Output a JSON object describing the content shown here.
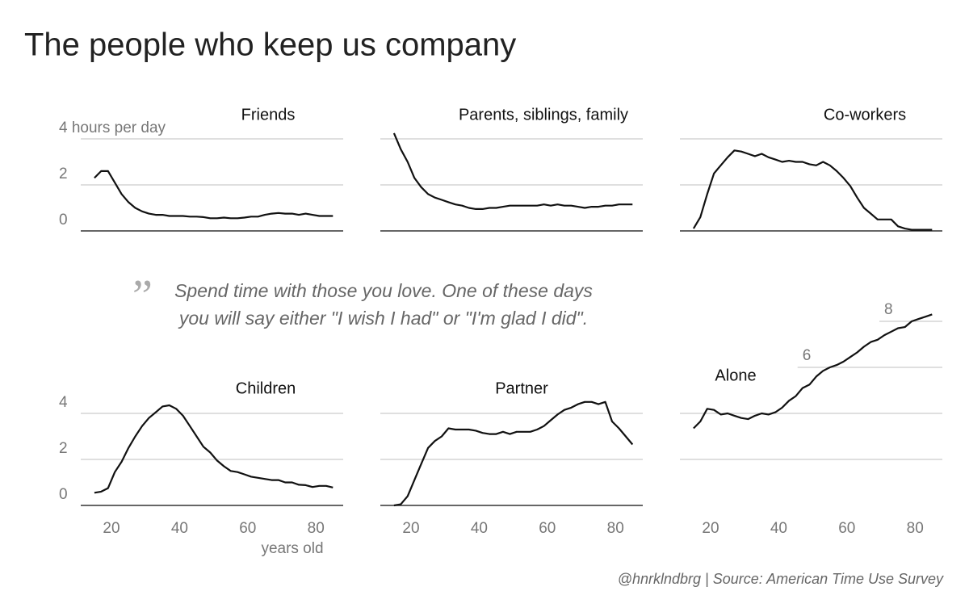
{
  "title": "The people who keep us company",
  "quote": [
    "Spend time with those you love. One of these days",
    "you will say either \"I wish I had\" or \"I'm glad I did\"."
  ],
  "source": "@hnrklndbrg | Source: American Time Use Survey",
  "chart_data": [
    {
      "type": "line",
      "title": "Friends",
      "x": [
        15,
        17,
        19,
        21,
        23,
        25,
        27,
        29,
        31,
        33,
        35,
        37,
        39,
        41,
        43,
        45,
        47,
        49,
        51,
        53,
        55,
        57,
        59,
        61,
        63,
        65,
        67,
        69,
        71,
        73,
        75,
        77,
        79,
        81,
        83,
        85
      ],
      "series": [
        {
          "color": "#111111",
          "values": [
            2.3,
            2.6,
            2.6,
            2.1,
            1.6,
            1.25,
            1.0,
            0.85,
            0.75,
            0.7,
            0.7,
            0.65,
            0.65,
            0.65,
            0.62,
            0.62,
            0.6,
            0.55,
            0.55,
            0.58,
            0.55,
            0.55,
            0.58,
            0.62,
            0.62,
            0.7,
            0.75,
            0.78,
            0.75,
            0.75,
            0.7,
            0.75,
            0.7,
            0.65,
            0.65,
            0.65
          ]
        }
      ],
      "xlim": [
        11,
        88
      ],
      "ylim": [
        0,
        4
      ],
      "yticks": [
        0,
        2,
        {
          "value": 4,
          "label": "4 hours per day"
        }
      ],
      "gridlines": []
    },
    {
      "type": "line",
      "title": "Parents, siblings, family",
      "x": [
        15,
        17,
        19,
        21,
        23,
        25,
        27,
        29,
        31,
        33,
        35,
        37,
        39,
        41,
        43,
        45,
        47,
        49,
        51,
        53,
        55,
        57,
        59,
        61,
        63,
        65,
        67,
        69,
        71,
        73,
        75,
        77,
        79,
        81,
        83,
        85
      ],
      "series": [
        {
          "color": "#111111",
          "values": [
            4.25,
            3.55,
            3.0,
            2.3,
            1.9,
            1.6,
            1.45,
            1.35,
            1.25,
            1.15,
            1.1,
            1.0,
            0.95,
            0.95,
            1.0,
            1.0,
            1.05,
            1.1,
            1.1,
            1.1,
            1.1,
            1.1,
            1.15,
            1.1,
            1.15,
            1.1,
            1.1,
            1.05,
            1.0,
            1.05,
            1.05,
            1.1,
            1.1,
            1.15,
            1.15,
            1.15
          ]
        }
      ],
      "xlim": [
        11,
        88
      ],
      "ylim": [
        0,
        4
      ],
      "yticks": [],
      "gridlines": [
        0,
        2,
        4
      ]
    },
    {
      "type": "line",
      "title": "Co-workers",
      "x": [
        15,
        17,
        19,
        21,
        23,
        25,
        27,
        29,
        31,
        33,
        35,
        37,
        39,
        41,
        43,
        45,
        47,
        49,
        51,
        53,
        55,
        57,
        59,
        61,
        63,
        65,
        67,
        69,
        71,
        73,
        75,
        77,
        79,
        81,
        83,
        85
      ],
      "series": [
        {
          "color": "#111111",
          "values": [
            0.1,
            0.6,
            1.6,
            2.5,
            2.85,
            3.2,
            3.5,
            3.45,
            3.35,
            3.25,
            3.35,
            3.2,
            3.1,
            3.0,
            3.05,
            3.0,
            3.0,
            2.9,
            2.85,
            3.0,
            2.85,
            2.6,
            2.3,
            1.95,
            1.45,
            1.0,
            0.75,
            0.5,
            0.5,
            0.5,
            0.2,
            0.1,
            0.05,
            0.05,
            0.05,
            0.05
          ]
        }
      ],
      "xlim": [
        11,
        88
      ],
      "ylim": [
        0,
        4
      ],
      "yticks": [],
      "gridlines": [
        0,
        2,
        4
      ]
    },
    {
      "type": "line",
      "title": "Children",
      "xlabel": "years old",
      "x": [
        15,
        17,
        19,
        21,
        23,
        25,
        27,
        29,
        31,
        33,
        35,
        37,
        39,
        41,
        43,
        45,
        47,
        49,
        51,
        53,
        55,
        57,
        59,
        61,
        63,
        65,
        67,
        69,
        71,
        73,
        75,
        77,
        79,
        81,
        83,
        85
      ],
      "series": [
        {
          "color": "#111111",
          "values": [
            0.55,
            0.6,
            0.75,
            1.45,
            1.9,
            2.5,
            3.0,
            3.45,
            3.8,
            4.05,
            4.3,
            4.35,
            4.2,
            3.9,
            3.45,
            3.0,
            2.55,
            2.3,
            1.95,
            1.7,
            1.5,
            1.45,
            1.35,
            1.25,
            1.2,
            1.15,
            1.1,
            1.1,
            1.0,
            1.0,
            0.9,
            0.88,
            0.8,
            0.85,
            0.85,
            0.78
          ]
        }
      ],
      "xlim": [
        11,
        88
      ],
      "xticks": [
        20,
        40,
        60,
        80
      ],
      "ylim": [
        0,
        4
      ],
      "yticks": [
        0,
        2,
        4
      ],
      "gridlines": []
    },
    {
      "type": "line",
      "title": "Partner",
      "x": [
        15,
        17,
        19,
        21,
        23,
        25,
        27,
        29,
        31,
        33,
        35,
        37,
        39,
        41,
        43,
        45,
        47,
        49,
        51,
        53,
        55,
        57,
        59,
        61,
        63,
        65,
        67,
        69,
        71,
        73,
        75,
        77,
        79,
        81,
        83,
        85
      ],
      "series": [
        {
          "color": "#111111",
          "values": [
            0,
            0.05,
            0.4,
            1.1,
            1.8,
            2.5,
            2.8,
            3.0,
            3.35,
            3.3,
            3.3,
            3.3,
            3.25,
            3.15,
            3.1,
            3.1,
            3.2,
            3.1,
            3.2,
            3.2,
            3.2,
            3.3,
            3.45,
            3.7,
            3.95,
            4.15,
            4.25,
            4.4,
            4.5,
            4.5,
            4.4,
            4.5,
            3.65,
            3.35,
            3.0,
            2.65
          ]
        }
      ],
      "xlim": [
        11,
        88
      ],
      "xticks": [
        20,
        40,
        60,
        80
      ],
      "ylim": [
        0,
        4
      ],
      "yticks": [],
      "gridlines": [
        0,
        2,
        4
      ]
    },
    {
      "type": "line",
      "title": "Alone",
      "x": [
        15,
        17,
        19,
        21,
        23,
        25,
        27,
        29,
        31,
        33,
        35,
        37,
        39,
        41,
        43,
        45,
        47,
        49,
        51,
        53,
        55,
        57,
        59,
        61,
        63,
        65,
        67,
        69,
        71,
        73,
        75,
        77,
        79,
        81,
        83,
        85
      ],
      "series": [
        {
          "color": "#111111",
          "values": [
            3.35,
            3.65,
            4.2,
            4.15,
            3.95,
            4.0,
            3.9,
            3.8,
            3.75,
            3.9,
            4.0,
            3.95,
            4.05,
            4.25,
            4.55,
            4.75,
            5.1,
            5.25,
            5.6,
            5.85,
            6.0,
            6.1,
            6.25,
            6.45,
            6.65,
            6.9,
            7.1,
            7.2,
            7.4,
            7.55,
            7.7,
            7.75,
            8.0,
            8.1,
            8.2,
            8.3
          ]
        }
      ],
      "xlim": [
        11,
        88
      ],
      "xticks": [
        20,
        40,
        60,
        80
      ],
      "ylim": [
        0,
        8
      ],
      "yticks": [
        6,
        8
      ],
      "gridlines": [
        2,
        4
      ]
    }
  ]
}
